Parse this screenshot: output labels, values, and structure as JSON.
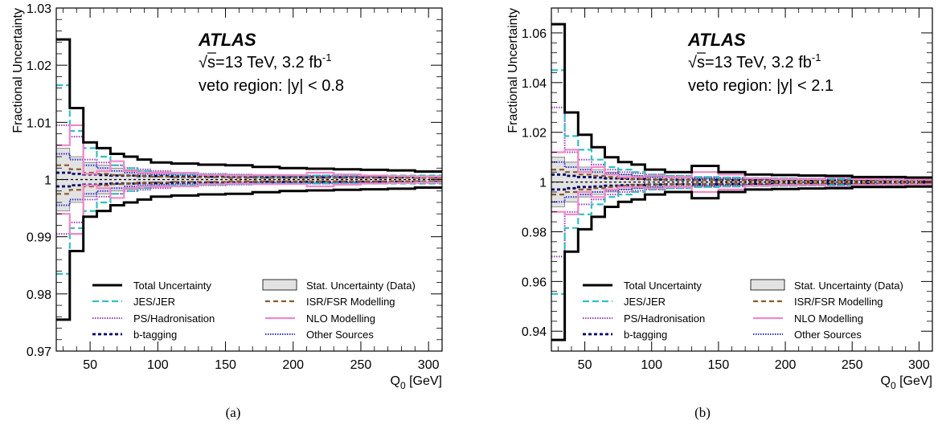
{
  "figure": {
    "captions": [
      "(a)",
      "(b)"
    ]
  },
  "legend_items": [
    {
      "key": "total",
      "label": "Total Uncertainty",
      "color": "#000000",
      "dash": "solid",
      "width": 3
    },
    {
      "key": "stat",
      "label": "Stat. Uncertainty (Data)",
      "color": "#e2e2e2",
      "fill": true
    },
    {
      "key": "jes",
      "label": "JES/JER",
      "color": "#33bfbf",
      "dash": "8,4",
      "width": 2.2
    },
    {
      "key": "isr",
      "label": "ISR/FSR Modelling",
      "color": "#8b5a2b",
      "dash": "6,4",
      "width": 2.2
    },
    {
      "key": "ps",
      "label": "PS/Hadronisation",
      "color": "#9a3fb8",
      "dash": "1.5,1.5",
      "width": 2
    },
    {
      "key": "nlo",
      "label": "NLO Modelling",
      "color": "#f088c8",
      "dash": "solid",
      "width": 2.2
    },
    {
      "key": "btag",
      "label": "b-tagging",
      "color": "#000066",
      "dash": "4,3",
      "width": 2.8
    },
    {
      "key": "other",
      "label": "Other Sources",
      "color": "#3333cc",
      "dash": "1.5,1.5",
      "width": 2
    }
  ],
  "chart_data": [
    {
      "type": "histogram-step",
      "panel": "(a)",
      "ylabel": "Fractional Uncertainty",
      "xlabel": "Q0 [GeV]",
      "xlabel_main": "Q",
      "xlabel_sub": "0",
      "xlabel_unit": " [GeV]",
      "xlim": [
        25,
        310
      ],
      "ylim": [
        0.97,
        1.03
      ],
      "xticks": [
        50,
        100,
        150,
        200,
        250,
        300
      ],
      "yticks": [
        0.97,
        0.98,
        0.99,
        1,
        1.01,
        1.02,
        1.03
      ],
      "ytick_labels": [
        "0.97",
        "0.98",
        "0.99",
        "1",
        "1.01",
        "1.02",
        "1.03"
      ],
      "annotation": {
        "experiment": "ATLAS",
        "sqrt": "√",
        "energy_text": "s=13 TeV, 3.2 fb",
        "lumi_exp": "-1",
        "region": "veto region: |y| < 0.8"
      },
      "bins": [
        25,
        35,
        45,
        55,
        65,
        75,
        85,
        95,
        110,
        130,
        150,
        170,
        190,
        210,
        230,
        250,
        270,
        290,
        310
      ],
      "series": [
        {
          "key": "stat",
          "values": [
            0.0055,
            0.004,
            0.003,
            0.0025,
            0.002,
            0.0017,
            0.0015,
            0.0013,
            0.0011,
            0.0009,
            0.0008,
            0.0007,
            0.0006,
            0.0006,
            0.0005,
            0.0005,
            0.0005,
            0.0005
          ]
        },
        {
          "key": "total",
          "values": [
            0.0245,
            0.0125,
            0.0065,
            0.0055,
            0.0045,
            0.004,
            0.0035,
            0.003,
            0.0028,
            0.0026,
            0.0025,
            0.0022,
            0.002,
            0.0019,
            0.0018,
            0.0017,
            0.0016,
            0.0014
          ]
        },
        {
          "key": "jes",
          "values": [
            0.0165,
            0.0085,
            0.0055,
            0.004,
            0.0025,
            0.002,
            0.0015,
            0.0012,
            0.001,
            0.0009,
            0.0008,
            0.0007,
            0.0007,
            0.0007,
            0.0007,
            0.0007,
            0.0007,
            0.0007
          ]
        },
        {
          "key": "ps",
          "values": [
            0.0095,
            0.0075,
            0.0035,
            0.003,
            0.0025,
            0.002,
            0.0018,
            0.0015,
            0.0012,
            0.001,
            0.0009,
            0.0008,
            0.0007,
            0.0007,
            0.0006,
            0.0006,
            0.0006,
            0.0006
          ]
        },
        {
          "key": "nlo",
          "values": [
            0.006,
            0.0095,
            0.001,
            0.0015,
            0.0032,
            0.0015,
            0.0012,
            0.0012,
            0.0012,
            0.0008,
            0.0007,
            0.0008,
            0.0008,
            0.0012,
            0.0009,
            0.0007,
            0.0006,
            0.0005
          ]
        },
        {
          "key": "isr",
          "values": [
            0.0025,
            0.0018,
            0.0012,
            0.001,
            0.0008,
            0.0007,
            0.0006,
            0.0005,
            0.0004,
            0.0004,
            0.0003,
            0.0003,
            0.0003,
            0.0003,
            0.0003,
            0.0003,
            0.0003,
            0.0003
          ]
        },
        {
          "key": "btag",
          "values": [
            0.0012,
            0.001,
            0.0009,
            0.0008,
            0.0007,
            0.0007,
            0.0006,
            0.0006,
            0.0005,
            0.0005,
            0.0005,
            0.0004,
            0.0004,
            0.0004,
            0.0004,
            0.0004,
            0.0004,
            0.0004
          ]
        },
        {
          "key": "other",
          "values": [
            0.0045,
            0.0035,
            0.0025,
            0.002,
            0.0015,
            0.0012,
            0.001,
            0.0009,
            0.0008,
            0.0007,
            0.0006,
            0.0005,
            0.0005,
            0.0005,
            0.0005,
            0.0005,
            0.0005,
            0.0005
          ]
        }
      ]
    },
    {
      "type": "histogram-step",
      "panel": "(b)",
      "ylabel": "Fractional Uncertainty",
      "xlabel": "Q0 [GeV]",
      "xlabel_main": "Q",
      "xlabel_sub": "0",
      "xlabel_unit": " [GeV]",
      "xlim": [
        25,
        310
      ],
      "ylim": [
        0.932,
        1.07
      ],
      "xticks": [
        50,
        100,
        150,
        200,
        250,
        300
      ],
      "yticks": [
        0.94,
        0.96,
        0.98,
        1,
        1.02,
        1.04,
        1.06
      ],
      "ytick_labels": [
        "0.94",
        "0.96",
        "0.98",
        "1",
        "1.02",
        "1.04",
        "1.06"
      ],
      "annotation": {
        "experiment": "ATLAS",
        "sqrt": "√",
        "energy_text": "s=13 TeV, 3.2 fb",
        "lumi_exp": "-1",
        "region": "veto region: |y| < 2.1"
      },
      "bins": [
        25,
        35,
        45,
        55,
        65,
        75,
        85,
        95,
        110,
        130,
        150,
        170,
        190,
        210,
        230,
        250,
        270,
        290,
        310
      ],
      "series": [
        {
          "key": "stat",
          "values": [
            0.01,
            0.008,
            0.006,
            0.005,
            0.004,
            0.003,
            0.0025,
            0.002,
            0.0018,
            0.0015,
            0.0012,
            0.001,
            0.001,
            0.0009,
            0.0008,
            0.0008,
            0.0008,
            0.0008
          ]
        },
        {
          "key": "total",
          "values": [
            0.0635,
            0.028,
            0.019,
            0.014,
            0.01,
            0.008,
            0.007,
            0.005,
            0.004,
            0.0065,
            0.004,
            0.003,
            0.0028,
            0.0026,
            0.0025,
            0.002,
            0.002,
            0.0018
          ]
        },
        {
          "key": "jes",
          "values": [
            0.045,
            0.0185,
            0.013,
            0.009,
            0.006,
            0.005,
            0.004,
            0.003,
            0.0025,
            0.002,
            0.0018,
            0.0016,
            0.0015,
            0.0014,
            0.0013,
            0.0012,
            0.0012,
            0.0012
          ]
        },
        {
          "key": "ps",
          "values": [
            0.03,
            0.012,
            0.009,
            0.007,
            0.005,
            0.004,
            0.0035,
            0.003,
            0.0025,
            0.002,
            0.0018,
            0.0016,
            0.0015,
            0.0014,
            0.0013,
            0.0012,
            0.0012,
            0.0012
          ]
        },
        {
          "key": "nlo",
          "values": [
            0.012,
            0.013,
            0.004,
            0.006,
            0.003,
            0.002,
            0.002,
            0.0025,
            0.002,
            0.004,
            0.003,
            0.0015,
            0.0012,
            0.0012,
            0.002,
            0.0012,
            0.001,
            0.001
          ]
        },
        {
          "key": "isr",
          "values": [
            0.005,
            0.004,
            0.003,
            0.0025,
            0.002,
            0.0015,
            0.0012,
            0.001,
            0.0009,
            0.0008,
            0.0007,
            0.0006,
            0.0006,
            0.0005,
            0.0005,
            0.0005,
            0.0005,
            0.0005
          ]
        },
        {
          "key": "btag",
          "values": [
            0.003,
            0.0025,
            0.002,
            0.0018,
            0.0015,
            0.0013,
            0.0012,
            0.001,
            0.0009,
            0.0008,
            0.0007,
            0.0007,
            0.0006,
            0.0006,
            0.0006,
            0.0006,
            0.0006,
            0.0006
          ]
        },
        {
          "key": "other",
          "values": [
            0.008,
            0.006,
            0.005,
            0.004,
            0.0035,
            0.003,
            0.0025,
            0.002,
            0.0018,
            0.0015,
            0.0012,
            0.001,
            0.001,
            0.0009,
            0.0008,
            0.0008,
            0.0008,
            0.0008
          ]
        }
      ]
    }
  ]
}
